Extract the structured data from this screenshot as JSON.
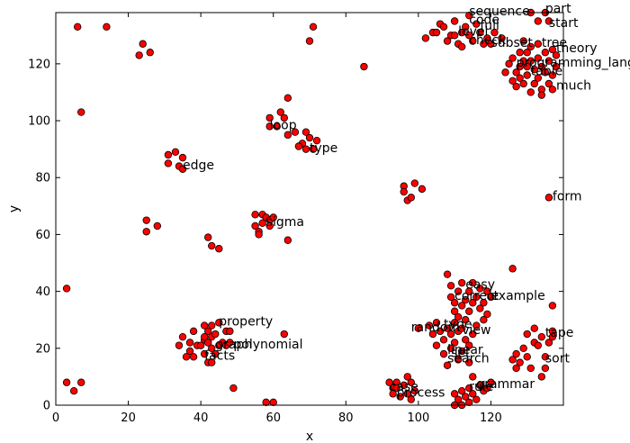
{
  "chart_data": {
    "type": "scatter",
    "xlabel": "x",
    "ylabel": "y",
    "xlim": [
      0,
      140
    ],
    "ylim": [
      0,
      138
    ],
    "xticks": [
      0,
      20,
      40,
      60,
      80,
      100,
      120
    ],
    "yticks": [
      0,
      20,
      40,
      60,
      80,
      100,
      120
    ],
    "grid": false,
    "marker_color": "#ff0000",
    "marker_edge": "#000000",
    "points": [
      [
        6,
        133
      ],
      [
        14,
        133
      ],
      [
        24,
        127
      ],
      [
        23,
        123
      ],
      [
        26,
        124
      ],
      [
        7,
        103
      ],
      [
        59,
        101
      ],
      [
        62,
        103
      ],
      [
        59,
        98
      ],
      [
        61,
        98
      ],
      [
        63,
        101
      ],
      [
        64,
        108
      ],
      [
        64,
        95
      ],
      [
        66,
        96
      ],
      [
        69,
        96
      ],
      [
        70,
        94
      ],
      [
        68,
        92
      ],
      [
        71,
        90
      ],
      [
        69,
        90
      ],
      [
        67,
        91
      ],
      [
        72,
        93
      ],
      [
        70,
        128
      ],
      [
        71,
        133
      ],
      [
        85,
        119
      ],
      [
        102,
        129
      ],
      [
        31,
        88
      ],
      [
        33,
        89
      ],
      [
        35,
        87
      ],
      [
        31,
        85
      ],
      [
        34,
        84
      ],
      [
        35,
        83
      ],
      [
        25,
        65
      ],
      [
        25,
        61
      ],
      [
        28,
        63
      ],
      [
        42,
        59
      ],
      [
        43,
        56
      ],
      [
        45,
        55
      ],
      [
        55,
        63
      ],
      [
        56,
        61
      ],
      [
        55,
        67
      ],
      [
        57,
        67
      ],
      [
        58,
        66
      ],
      [
        59,
        65
      ],
      [
        57,
        64
      ],
      [
        59,
        63
      ],
      [
        60,
        66
      ],
      [
        56,
        60
      ],
      [
        64,
        58
      ],
      [
        96,
        77
      ],
      [
        96,
        75
      ],
      [
        97,
        72
      ],
      [
        99,
        78
      ],
      [
        98,
        73
      ],
      [
        101,
        76
      ],
      [
        3,
        41
      ],
      [
        3,
        8
      ],
      [
        5,
        5
      ],
      [
        7,
        8
      ],
      [
        34,
        21
      ],
      [
        35,
        24
      ],
      [
        37,
        19
      ],
      [
        36,
        17
      ],
      [
        37,
        22
      ],
      [
        38,
        26
      ],
      [
        39,
        21
      ],
      [
        38,
        17
      ],
      [
        40,
        21
      ],
      [
        41,
        23
      ],
      [
        41,
        28
      ],
      [
        41,
        24
      ],
      [
        42,
        26
      ],
      [
        42,
        22
      ],
      [
        43,
        28
      ],
      [
        43,
        24
      ],
      [
        43,
        20
      ],
      [
        41,
        18
      ],
      [
        42,
        15
      ],
      [
        43,
        15
      ],
      [
        44,
        25
      ],
      [
        45,
        21
      ],
      [
        44,
        18
      ],
      [
        45,
        29
      ],
      [
        46,
        22
      ],
      [
        47,
        26
      ],
      [
        47,
        21
      ],
      [
        48,
        22
      ],
      [
        48,
        26
      ],
      [
        49,
        6
      ],
      [
        63,
        25
      ],
      [
        58,
        1
      ],
      [
        60,
        1
      ],
      [
        92,
        8
      ],
      [
        93,
        6
      ],
      [
        93,
        4
      ],
      [
        94,
        8
      ],
      [
        94,
        6
      ],
      [
        95,
        3
      ],
      [
        96,
        7
      ],
      [
        97,
        10
      ],
      [
        97,
        4
      ],
      [
        98,
        8
      ],
      [
        98,
        2
      ],
      [
        99,
        5
      ],
      [
        110,
        0
      ],
      [
        110,
        4
      ],
      [
        111,
        2
      ],
      [
        112,
        0
      ],
      [
        112,
        5
      ],
      [
        113,
        3
      ],
      [
        114,
        1
      ],
      [
        114,
        6
      ],
      [
        115,
        4
      ],
      [
        116,
        2
      ],
      [
        117,
        7
      ],
      [
        118,
        5
      ],
      [
        119,
        6
      ],
      [
        120,
        8
      ],
      [
        115,
        10
      ],
      [
        100,
        27
      ],
      [
        103,
        28
      ],
      [
        104,
        25
      ],
      [
        105,
        21
      ],
      [
        105,
        29
      ],
      [
        106,
        26
      ],
      [
        107,
        23
      ],
      [
        107,
        18
      ],
      [
        108,
        27
      ],
      [
        108,
        14
      ],
      [
        109,
        20
      ],
      [
        109,
        25
      ],
      [
        110,
        29
      ],
      [
        110,
        22
      ],
      [
        111,
        16
      ],
      [
        111,
        26
      ],
      [
        112,
        19
      ],
      [
        112,
        27
      ],
      [
        113,
        23
      ],
      [
        114,
        15
      ],
      [
        114,
        21
      ],
      [
        115,
        25
      ],
      [
        108,
        46
      ],
      [
        109,
        42
      ],
      [
        109,
        38
      ],
      [
        110,
        33
      ],
      [
        110,
        36
      ],
      [
        111,
        40
      ],
      [
        111,
        31
      ],
      [
        112,
        35
      ],
      [
        112,
        43
      ],
      [
        113,
        37
      ],
      [
        113,
        30
      ],
      [
        114,
        33
      ],
      [
        114,
        40
      ],
      [
        115,
        36
      ],
      [
        115,
        43
      ],
      [
        116,
        28
      ],
      [
        116,
        38
      ],
      [
        117,
        41
      ],
      [
        117,
        34
      ],
      [
        118,
        30
      ],
      [
        118,
        36
      ],
      [
        119,
        40
      ],
      [
        119,
        32
      ],
      [
        120,
        38
      ],
      [
        126,
        48
      ],
      [
        126,
        16
      ],
      [
        127,
        18
      ],
      [
        127,
        13
      ],
      [
        128,
        15
      ],
      [
        129,
        20
      ],
      [
        130,
        25
      ],
      [
        130,
        17
      ],
      [
        131,
        13
      ],
      [
        132,
        27
      ],
      [
        132,
        22
      ],
      [
        133,
        21
      ],
      [
        134,
        24
      ],
      [
        134,
        10
      ],
      [
        135,
        13
      ],
      [
        135,
        17
      ],
      [
        136,
        22
      ],
      [
        137,
        26
      ],
      [
        137,
        24
      ],
      [
        137,
        35
      ],
      [
        136,
        73
      ],
      [
        104,
        131
      ],
      [
        105,
        131
      ],
      [
        106,
        134
      ],
      [
        107,
        133
      ],
      [
        108,
        128
      ],
      [
        109,
        130
      ],
      [
        110,
        135
      ],
      [
        110,
        130
      ],
      [
        111,
        127
      ],
      [
        112,
        126
      ],
      [
        112,
        131
      ],
      [
        113,
        133
      ],
      [
        114,
        130
      ],
      [
        114,
        137
      ],
      [
        115,
        128
      ],
      [
        116,
        134
      ],
      [
        117,
        131
      ],
      [
        118,
        127
      ],
      [
        119,
        129
      ],
      [
        120,
        127
      ],
      [
        121,
        131
      ],
      [
        123,
        129
      ],
      [
        124,
        117
      ],
      [
        125,
        120
      ],
      [
        126,
        114
      ],
      [
        126,
        122
      ],
      [
        127,
        117
      ],
      [
        127,
        112
      ],
      [
        128,
        124
      ],
      [
        128,
        119
      ],
      [
        128,
        115
      ],
      [
        129,
        121
      ],
      [
        129,
        113
      ],
      [
        130,
        119
      ],
      [
        130,
        124
      ],
      [
        130,
        116
      ],
      [
        131,
        110
      ],
      [
        131,
        121
      ],
      [
        131,
        126
      ],
      [
        132,
        113
      ],
      [
        132,
        118
      ],
      [
        133,
        122
      ],
      [
        133,
        115
      ],
      [
        133,
        127
      ],
      [
        134,
        119
      ],
      [
        134,
        111
      ],
      [
        135,
        117
      ],
      [
        135,
        124
      ],
      [
        136,
        121
      ],
      [
        136,
        113
      ],
      [
        137,
        116
      ],
      [
        137,
        125
      ],
      [
        137,
        111
      ],
      [
        138,
        119
      ],
      [
        138,
        123
      ],
      [
        134,
        109
      ],
      [
        129,
        128
      ],
      [
        131,
        138
      ],
      [
        133,
        135
      ],
      [
        135,
        138
      ],
      [
        136,
        135
      ]
    ],
    "annotations": [
      {
        "text": "part",
        "x": 135,
        "y": 138
      },
      {
        "text": "start",
        "x": 136,
        "y": 133
      },
      {
        "text": "sequence",
        "x": 114,
        "y": 137
      },
      {
        "text": "code",
        "x": 114,
        "y": 134
      },
      {
        "text": "full",
        "x": 117,
        "y": 132
      },
      {
        "text": "level",
        "x": 111,
        "y": 130
      },
      {
        "text": "check",
        "x": 114,
        "y": 127
      },
      {
        "text": "subset",
        "x": 120,
        "y": 126
      },
      {
        "text": "tree",
        "x": 134,
        "y": 126
      },
      {
        "text": "theory",
        "x": 138,
        "y": 124
      },
      {
        "text": "programming_language",
        "x": 127,
        "y": 119
      },
      {
        "text": "table",
        "x": 131,
        "y": 116
      },
      {
        "text": "much",
        "x": 138,
        "y": 111
      },
      {
        "text": "loop",
        "x": 59,
        "y": 97
      },
      {
        "text": "type",
        "x": 70,
        "y": 89
      },
      {
        "text": "edge",
        "x": 35,
        "y": 83
      },
      {
        "text": "form",
        "x": 137,
        "y": 72
      },
      {
        "text": "sigma",
        "x": 58,
        "y": 63
      },
      {
        "text": "easy",
        "x": 113,
        "y": 41
      },
      {
        "text": "example",
        "x": 120,
        "y": 37
      },
      {
        "text": "correct",
        "x": 110,
        "y": 37
      },
      {
        "text": "property",
        "x": 45,
        "y": 28
      },
      {
        "text": "random",
        "x": 98,
        "y": 26
      },
      {
        "text": "type",
        "x": 107,
        "y": 27
      },
      {
        "text": "view",
        "x": 112,
        "y": 25
      },
      {
        "text": "polynomial",
        "x": 49,
        "y": 20
      },
      {
        "text": "graph",
        "x": 44,
        "y": 20
      },
      {
        "text": "linear",
        "x": 108,
        "y": 18
      },
      {
        "text": "tape",
        "x": 135,
        "y": 24
      },
      {
        "text": "facts",
        "x": 41,
        "y": 16
      },
      {
        "text": "set",
        "x": 109,
        "y": 17
      },
      {
        "text": "search",
        "x": 108,
        "y": 15
      },
      {
        "text": "sort",
        "x": 135,
        "y": 15
      },
      {
        "text": "grammar",
        "x": 116,
        "y": 6
      },
      {
        "text": "rule",
        "x": 114,
        "y": 5
      },
      {
        "text": "case",
        "x": 92,
        "y": 5
      },
      {
        "text": "process",
        "x": 94,
        "y": 3
      }
    ]
  }
}
